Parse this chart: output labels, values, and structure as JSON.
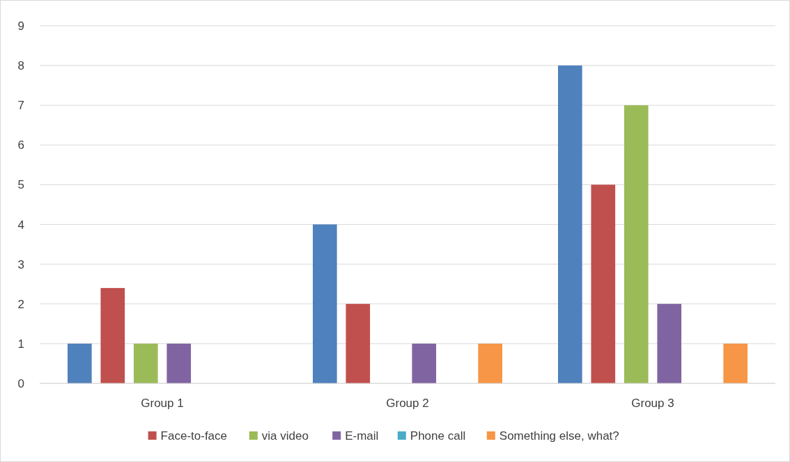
{
  "chart_data": {
    "type": "bar",
    "categories": [
      "Group 1",
      "Group 2",
      "Group 3"
    ],
    "series": [
      {
        "color": "#4f81bd",
        "values": [
          1,
          4,
          8
        ]
      },
      {
        "name": "Face-to-face",
        "color": "#c0504d",
        "values": [
          2.4,
          2,
          5
        ]
      },
      {
        "name": "via video",
        "color": "#9bbb59",
        "values": [
          1,
          0,
          7
        ]
      },
      {
        "name": "E-mail",
        "color": "#8064a2",
        "values": [
          1,
          1,
          2
        ]
      },
      {
        "name": "Phone call",
        "color": "#4bacc6",
        "values": [
          0,
          0,
          0
        ]
      },
      {
        "name": "Something else, what?",
        "color": "#f79646",
        "values": [
          0,
          1,
          1
        ]
      }
    ],
    "ylim": [
      0,
      9
    ],
    "yticks": [
      0,
      1,
      2,
      3,
      4,
      5,
      6,
      7,
      8,
      9
    ],
    "grid": "y",
    "legend": "bottom"
  }
}
